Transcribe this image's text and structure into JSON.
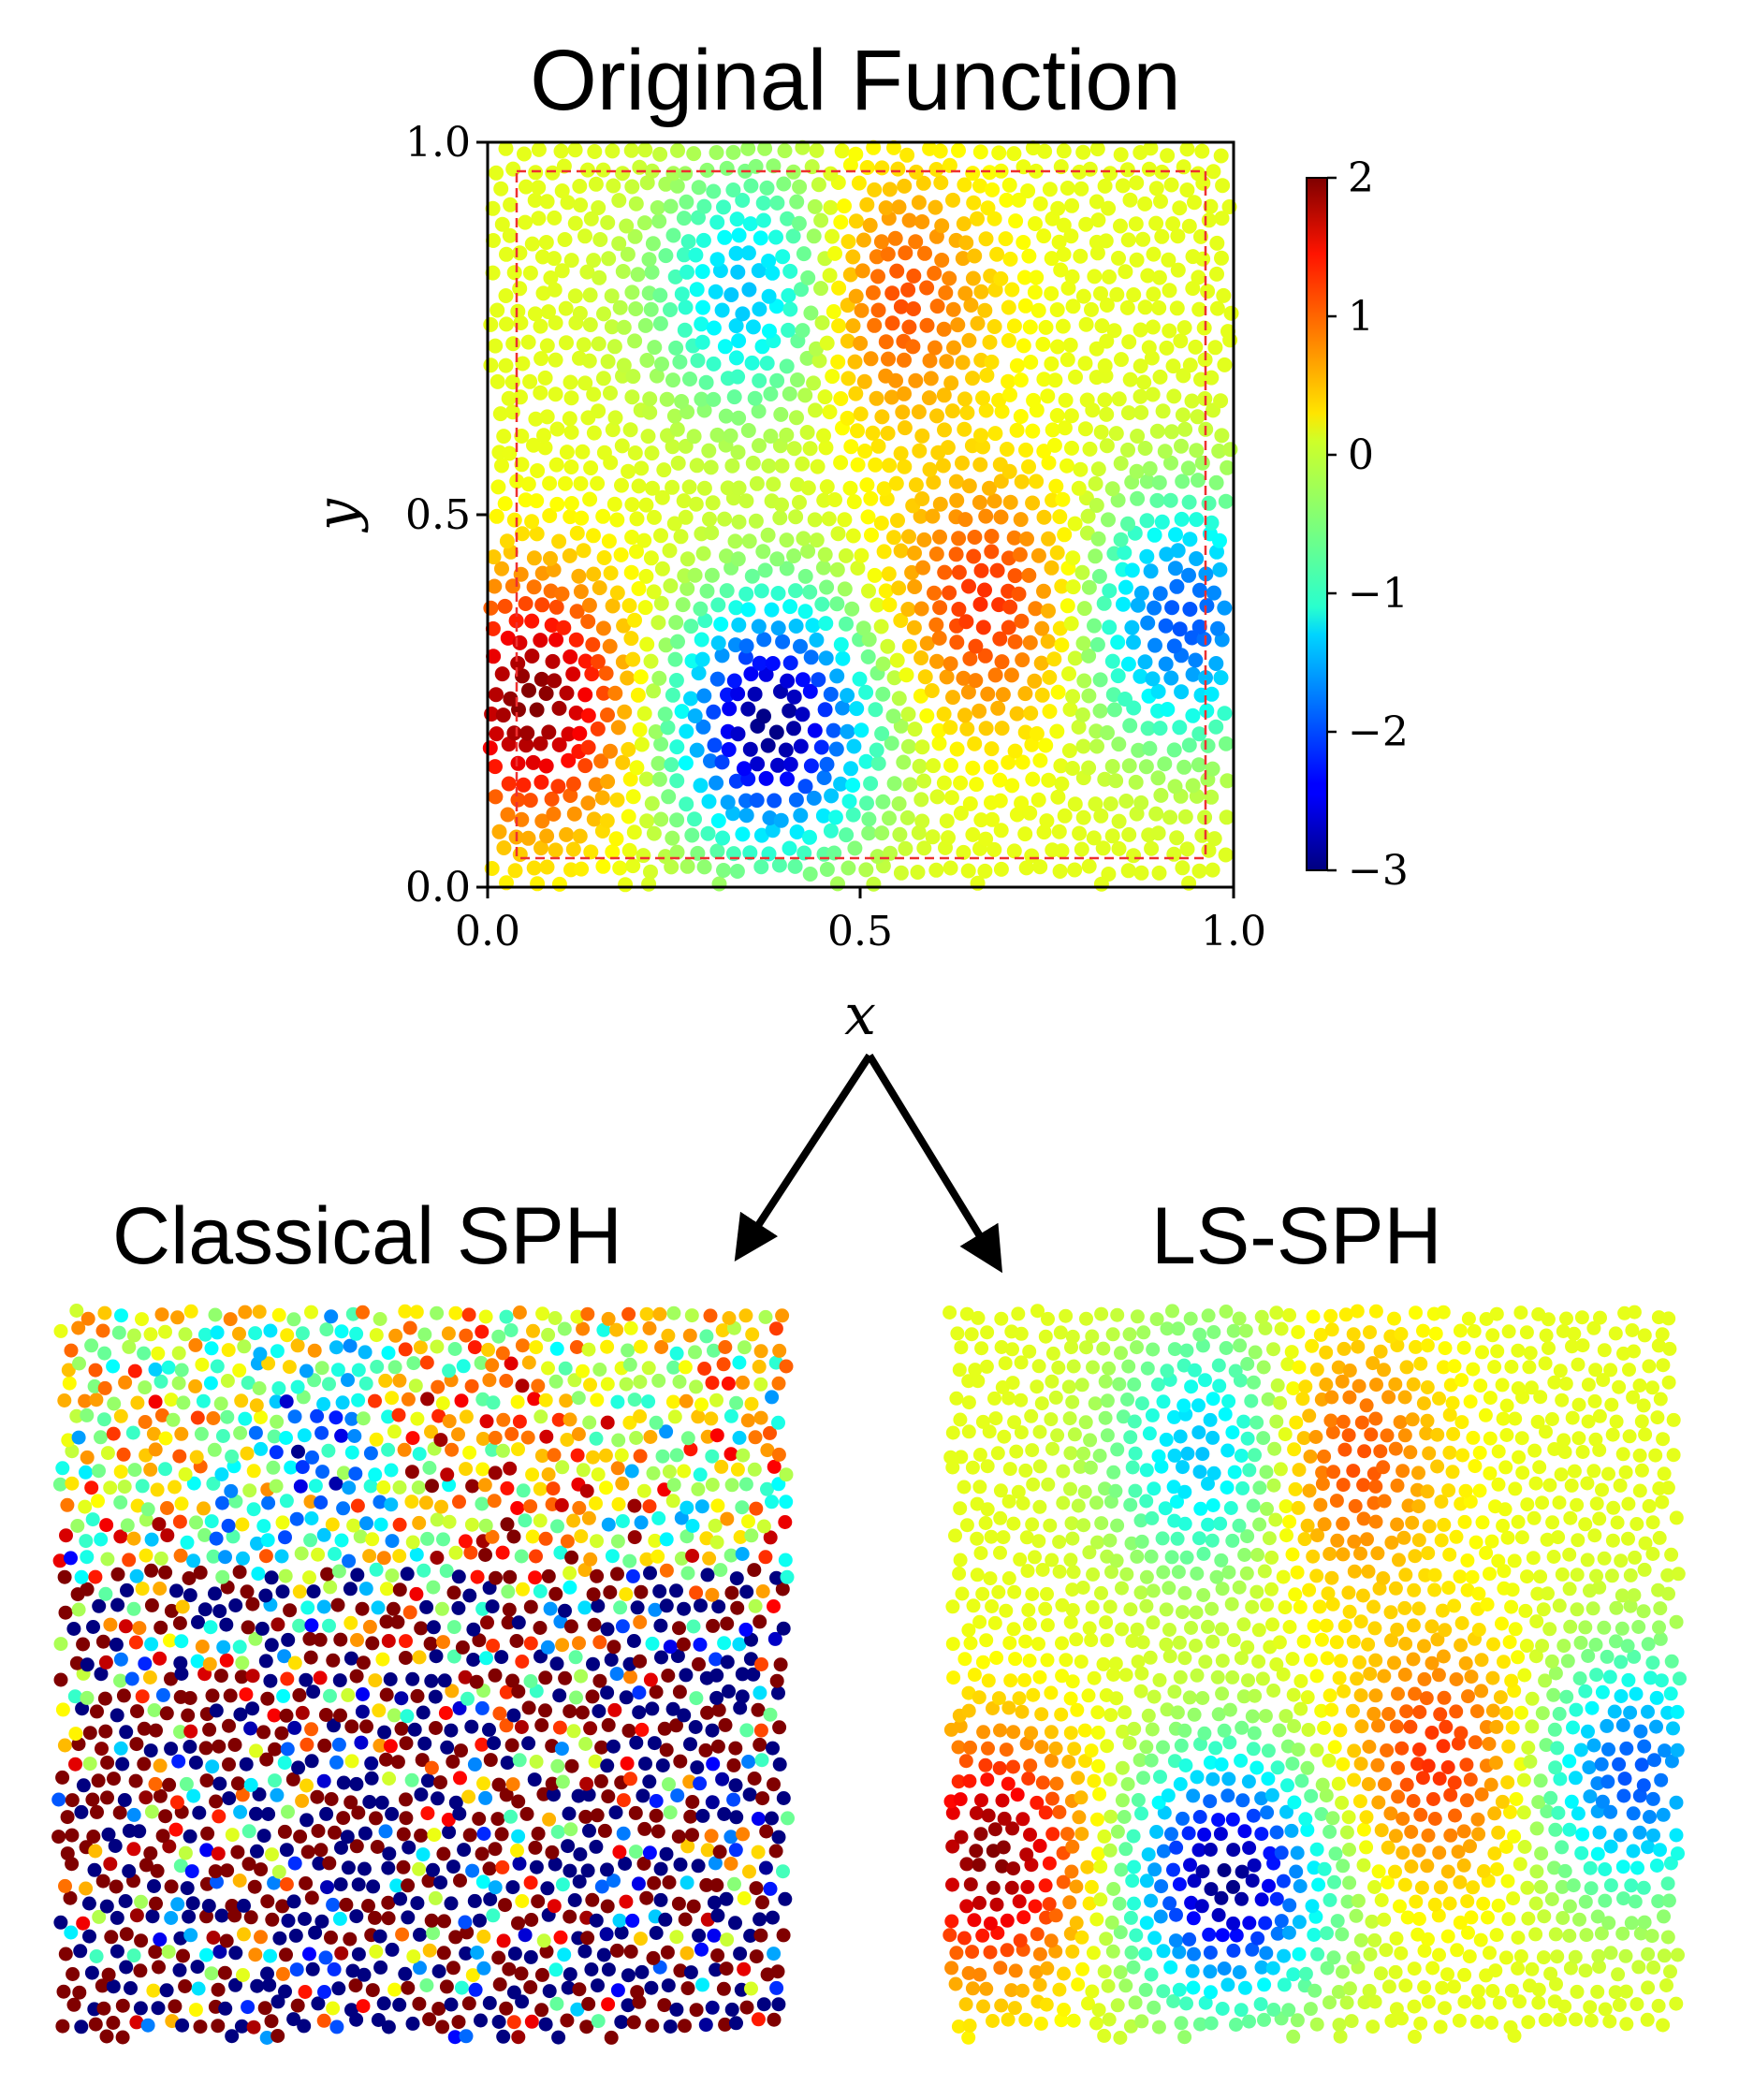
{
  "chart_data": [
    {
      "type": "scatter",
      "title": "Original Function",
      "xlabel": "x",
      "ylabel": "y",
      "xlim": [
        0.0,
        1.0
      ],
      "ylim": [
        0.0,
        1.0
      ],
      "xticks": [
        "0.0",
        "0.5",
        "1.0"
      ],
      "yticks": [
        "0.0",
        "0.5",
        "1.0"
      ],
      "colormap": "jet",
      "colorbar": {
        "min": -3,
        "max": 2,
        "ticks": [
          "2",
          "1",
          "0",
          "−1",
          "−2",
          "−3"
        ]
      },
      "inner_boundary": [
        0.04,
        0.96
      ],
      "field_features": [
        {
          "x": 0.06,
          "y": 0.25,
          "value": 2.0
        },
        {
          "x": 0.38,
          "y": 0.22,
          "value": -3.0
        },
        {
          "x": 0.67,
          "y": 0.38,
          "value": 1.2
        },
        {
          "x": 0.93,
          "y": 0.36,
          "value": -2.0
        },
        {
          "x": 0.36,
          "y": 0.8,
          "value": -1.6
        },
        {
          "x": 0.53,
          "y": 0.79,
          "value": 1.2
        }
      ]
    },
    {
      "type": "scatter",
      "title": "Classical SPH",
      "description_value_range": [
        -3,
        2
      ],
      "colormap": "jet"
    },
    {
      "type": "scatter",
      "title": "LS-SPH",
      "description_value_range": [
        -3,
        2
      ],
      "colormap": "jet"
    }
  ],
  "arrows": {
    "color": "#000000"
  },
  "boundary_color": "#ee3030"
}
